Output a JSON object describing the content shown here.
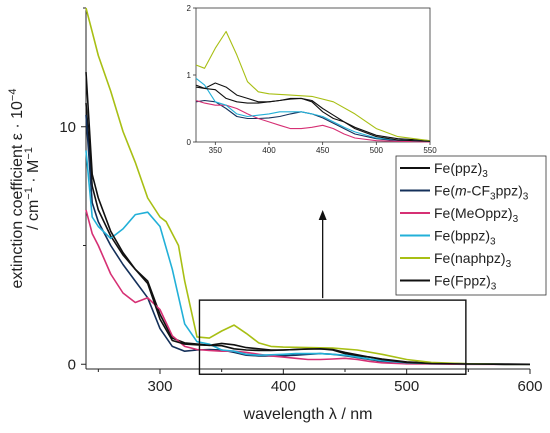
{
  "chart_data": {
    "type": "line",
    "xlabel": "wavelength λ / nm",
    "ylabel_parts": {
      "prefix": "extinction coefficient ε · 10",
      "prefix_exp": "−4",
      "unit_prefix": "/ cm",
      "unit_exp1": "−1",
      "unit_mid": " · M",
      "unit_exp2": "−1"
    },
    "xlim": [
      240,
      600
    ],
    "ylim": [
      -0.2,
      15
    ],
    "xticks": [
      300,
      400,
      500,
      600
    ],
    "yticks": [
      0,
      10
    ],
    "zoom_box": {
      "xlim": [
        332,
        548
      ],
      "ylim": [
        0,
        2.7
      ]
    },
    "inset": {
      "xlim": [
        332,
        550
      ],
      "ylim": [
        0,
        2
      ],
      "xticks": [
        350,
        400,
        450,
        500,
        550
      ],
      "yticks": [
        0,
        1,
        2
      ]
    },
    "legend": {
      "placement": "right",
      "entries": [
        {
          "base": "Fe(ppz)",
          "sub": "3",
          "color": "#111111"
        },
        {
          "base": "Fe(",
          "italic": "m",
          "rest": "-CF",
          "sub1": "3",
          "rest2": "ppz)",
          "sub": "3",
          "color": "#14305a"
        },
        {
          "base": "Fe(MeOppz)",
          "sub": "3",
          "color": "#d63074"
        },
        {
          "base": "Fe(bppz)",
          "sub": "3",
          "color": "#22b0d8"
        },
        {
          "base": "Fe(naphpz)",
          "sub": "3",
          "color": "#a8bf14"
        },
        {
          "base": "Fe(Fppz)",
          "sub": "3",
          "color": "#111111"
        }
      ]
    },
    "series": [
      {
        "name": "Fe(ppz)3",
        "color": "#111111",
        "x": [
          240,
          245,
          250,
          260,
          270,
          280,
          290,
          300,
          310,
          320,
          330,
          340,
          350,
          360,
          370,
          380,
          390,
          400,
          410,
          420,
          430,
          440,
          450,
          460,
          470,
          480,
          500,
          520,
          550,
          580,
          600
        ],
        "y": [
          11.0,
          7.5,
          6.5,
          5.4,
          4.6,
          4.0,
          3.5,
          2.1,
          1.1,
          0.9,
          0.85,
          0.8,
          0.88,
          0.82,
          0.7,
          0.65,
          0.6,
          0.6,
          0.62,
          0.65,
          0.65,
          0.6,
          0.45,
          0.35,
          0.3,
          0.22,
          0.1,
          0.05,
          0.02,
          0.01,
          0.0
        ]
      },
      {
        "name": "Fe(m-CF3ppz)3",
        "color": "#14305a",
        "x": [
          240,
          245,
          250,
          260,
          270,
          280,
          290,
          300,
          310,
          320,
          330,
          340,
          350,
          360,
          370,
          380,
          390,
          400,
          410,
          420,
          430,
          440,
          450,
          460,
          470,
          480,
          500,
          520,
          550,
          580,
          600
        ],
        "y": [
          10.5,
          6.8,
          6.0,
          5.0,
          4.2,
          3.5,
          2.8,
          1.5,
          0.75,
          0.55,
          0.6,
          0.62,
          0.6,
          0.5,
          0.38,
          0.35,
          0.35,
          0.36,
          0.38,
          0.42,
          0.45,
          0.42,
          0.36,
          0.28,
          0.2,
          0.12,
          0.05,
          0.02,
          0.01,
          0.0,
          0.0
        ]
      },
      {
        "name": "Fe(MeOppz)3",
        "color": "#d63074",
        "x": [
          240,
          245,
          250,
          260,
          270,
          280,
          290,
          300,
          310,
          320,
          330,
          340,
          350,
          360,
          370,
          380,
          390,
          400,
          410,
          420,
          430,
          440,
          450,
          460,
          470,
          480,
          500,
          520,
          550,
          580,
          600
        ],
        "y": [
          6.5,
          5.5,
          5.0,
          3.8,
          3.0,
          2.6,
          2.8,
          2.3,
          1.2,
          0.75,
          0.62,
          0.58,
          0.55,
          0.55,
          0.5,
          0.42,
          0.35,
          0.3,
          0.25,
          0.2,
          0.2,
          0.22,
          0.25,
          0.2,
          0.12,
          0.06,
          0.02,
          0.01,
          0.0,
          0.0,
          0.0
        ]
      },
      {
        "name": "Fe(bppz)3",
        "color": "#22b0d8",
        "x": [
          240,
          245,
          250,
          260,
          270,
          280,
          290,
          300,
          310,
          320,
          330,
          340,
          350,
          360,
          370,
          380,
          390,
          400,
          410,
          420,
          430,
          440,
          450,
          460,
          470,
          480,
          500,
          520,
          550,
          580,
          600
        ],
        "y": [
          9.0,
          6.2,
          5.8,
          5.3,
          5.7,
          6.3,
          6.4,
          5.8,
          4.0,
          1.7,
          0.95,
          0.85,
          0.6,
          0.55,
          0.42,
          0.38,
          0.4,
          0.42,
          0.45,
          0.45,
          0.45,
          0.42,
          0.38,
          0.3,
          0.22,
          0.15,
          0.06,
          0.03,
          0.01,
          0.0,
          0.0
        ]
      },
      {
        "name": "Fe(naphpz)3",
        "color": "#a8bf14",
        "x": [
          240,
          245,
          250,
          260,
          270,
          280,
          290,
          300,
          305,
          310,
          315,
          320,
          330,
          340,
          350,
          360,
          370,
          380,
          390,
          400,
          420,
          440,
          460,
          480,
          500,
          520,
          550,
          580,
          600
        ],
        "y": [
          15.0,
          14.0,
          13.0,
          11.5,
          9.8,
          8.5,
          7.0,
          6.2,
          6.0,
          5.5,
          5.0,
          3.5,
          1.15,
          1.1,
          1.4,
          1.65,
          1.3,
          0.9,
          0.75,
          0.72,
          0.7,
          0.68,
          0.6,
          0.42,
          0.2,
          0.08,
          0.02,
          0.0,
          0.0
        ]
      },
      {
        "name": "Fe(Fppz)3",
        "color": "#111111",
        "x": [
          240,
          245,
          250,
          260,
          270,
          280,
          290,
          300,
          310,
          320,
          330,
          340,
          350,
          360,
          370,
          380,
          390,
          400,
          410,
          420,
          430,
          440,
          450,
          460,
          470,
          480,
          500,
          520,
          550,
          580,
          600
        ],
        "y": [
          12.3,
          8.0,
          7.0,
          5.6,
          4.7,
          4.0,
          3.4,
          1.9,
          1.0,
          0.85,
          0.82,
          0.8,
          0.78,
          0.65,
          0.6,
          0.58,
          0.58,
          0.6,
          0.62,
          0.64,
          0.65,
          0.62,
          0.5,
          0.4,
          0.3,
          0.2,
          0.08,
          0.03,
          0.01,
          0.0,
          0.0
        ]
      }
    ]
  }
}
